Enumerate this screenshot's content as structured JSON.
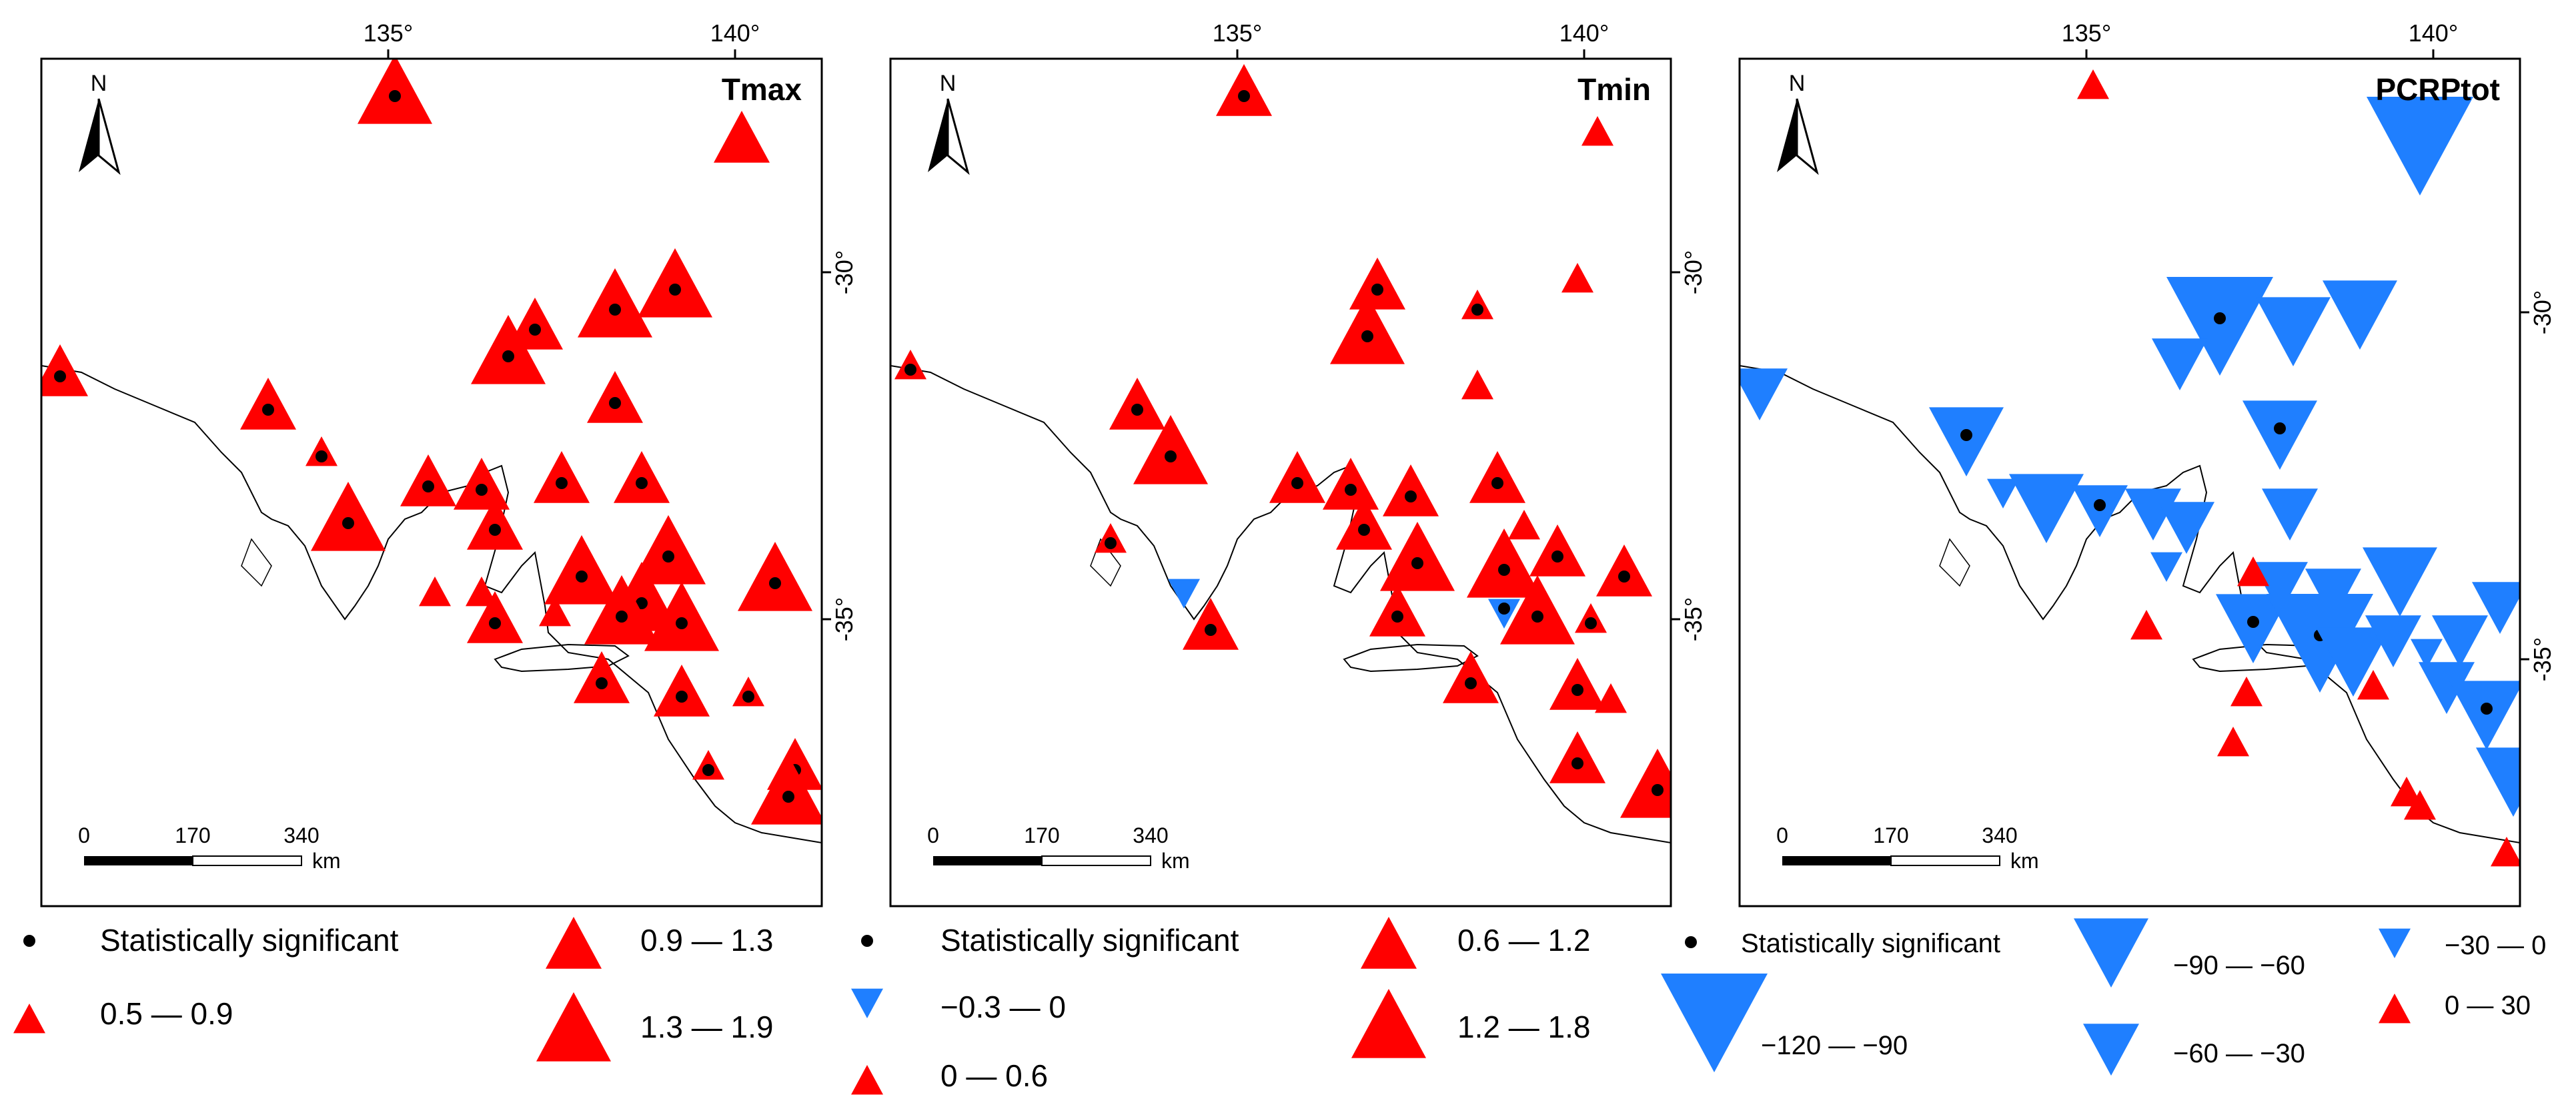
{
  "panels": [
    {
      "id": "tmax",
      "title": "Tmax",
      "top_ticks": [
        "135°",
        "140°"
      ],
      "side_ticks": [
        "-30°",
        "-35°"
      ],
      "side_ticks_position": "left",
      "north_label": "N",
      "scalebar": {
        "labels": [
          "0",
          "170",
          "340"
        ],
        "unit": "km"
      },
      "legend": {
        "significant_label": "Statistically significant",
        "classes": [
          {
            "label": "0.5 — 0.9",
            "direction": "up",
            "color": "#ff0000",
            "size_rank": 1
          },
          {
            "label": "0.9 — 1.3",
            "direction": "up",
            "color": "#ff0000",
            "size_rank": 2
          },
          {
            "label": "1.3 — 1.9",
            "direction": "up",
            "color": "#ff0000",
            "size_rank": 3
          }
        ]
      }
    },
    {
      "id": "tmin",
      "title": "Tmin",
      "top_ticks": [
        "135°",
        "140°"
      ],
      "side_ticks": [
        "-30°",
        "-35°"
      ],
      "side_ticks_position": "left",
      "north_label": "N",
      "scalebar": {
        "labels": [
          "0",
          "170",
          "340"
        ],
        "unit": "km"
      },
      "legend": {
        "significant_label": "Statistically significant",
        "classes": [
          {
            "label": "−0.3 — 0",
            "direction": "down",
            "color": "#1f7fff",
            "size_rank": 1
          },
          {
            "label": "0 — 0.6",
            "direction": "up",
            "color": "#ff0000",
            "size_rank": 1
          },
          {
            "label": "0.6 — 1.2",
            "direction": "up",
            "color": "#ff0000",
            "size_rank": 2
          },
          {
            "label": "1.2 — 1.8",
            "direction": "up",
            "color": "#ff0000",
            "size_rank": 3
          }
        ]
      }
    },
    {
      "id": "pcrptot",
      "title": "PCRPtot",
      "top_ticks": [
        "135°",
        "140°"
      ],
      "side_ticks": [
        "-30°",
        "-35°"
      ],
      "side_ticks_position": "right",
      "north_label": "N",
      "scalebar": {
        "labels": [
          "0",
          "170",
          "340"
        ],
        "unit": "km"
      },
      "legend": {
        "significant_label": "Statistically significant",
        "classes": [
          {
            "label": "−120 — −90",
            "direction": "down",
            "color": "#1f7fff",
            "size_rank": 4
          },
          {
            "label": "−90 — −60",
            "direction": "down",
            "color": "#1f7fff",
            "size_rank": 3
          },
          {
            "label": "−60 — −30",
            "direction": "down",
            "color": "#1f7fff",
            "size_rank": 2
          },
          {
            "label": "−30 — 0",
            "direction": "down",
            "color": "#1f7fff",
            "size_rank": 1
          },
          {
            "label": "0 — 30",
            "direction": "up",
            "color": "#ff0000",
            "size_rank": 1
          }
        ]
      }
    }
  ],
  "colors": {
    "increase": "#ff0000",
    "decrease": "#1f7fff",
    "significant_dot": "#000000",
    "frame": "#000000"
  }
}
